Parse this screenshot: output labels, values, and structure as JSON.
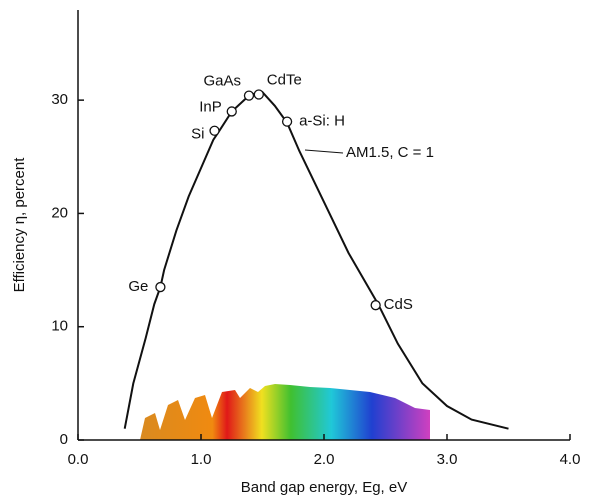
{
  "chart_data": {
    "type": "line",
    "x_label": "Band gap energy, Eg, eV",
    "y_label": "Efficiency η, percent",
    "color": "#111111",
    "x": [
      0.38,
      0.45,
      0.55,
      0.62,
      0.67,
      0.7,
      0.8,
      0.9,
      1.0,
      1.1,
      1.15,
      1.25,
      1.35,
      1.4,
      1.5,
      1.6,
      1.7,
      1.8,
      2.0,
      2.2,
      2.44,
      2.6,
      2.8,
      3.0,
      3.2,
      3.5
    ],
    "values": [
      1.0,
      5,
      9,
      12,
      13.5,
      15,
      18.5,
      21.5,
      24,
      26.5,
      27.3,
      29,
      30,
      30.5,
      30.7,
      29.5,
      28,
      25.5,
      21,
      16.5,
      12,
      8.5,
      5,
      3,
      1.8,
      1
    ],
    "points": [
      {
        "label": "Ge",
        "x": 0.67,
        "y": 13.5
      },
      {
        "label": "Si",
        "x": 1.11,
        "y": 27.3
      },
      {
        "label": "InP",
        "x": 1.25,
        "y": 29.0
      },
      {
        "label": "GaAs",
        "x": 1.39,
        "y": 30.4
      },
      {
        "label": "CdTe",
        "x": 1.47,
        "y": 30.5
      },
      {
        "label": "a-Si: H",
        "x": 1.7,
        "y": 28.1
      },
      {
        "label": "CdS",
        "x": 2.42,
        "y": 11.9
      }
    ],
    "annotation": "AM1.5, C = 1",
    "xlim": [
      0,
      4.0
    ],
    "ylim": [
      0,
      38
    ],
    "xticks": [
      {
        "value": 0,
        "label": "0.0"
      },
      {
        "value": 1,
        "label": "1.0"
      },
      {
        "value": 2,
        "label": "2.0"
      },
      {
        "value": 3,
        "label": "3.0"
      },
      {
        "value": 4,
        "label": "4.0"
      }
    ],
    "yticks": [
      0,
      10,
      20,
      30
    ]
  }
}
